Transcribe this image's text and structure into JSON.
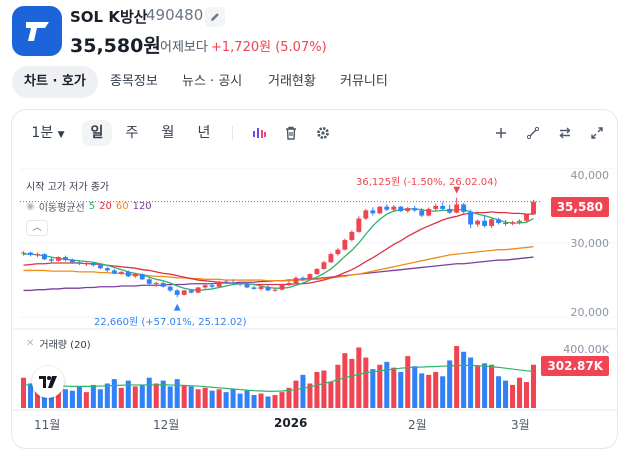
{
  "header": {
    "name": "SOL K방산",
    "code": "490480",
    "price": "35,580원",
    "vs_label": "어제보다",
    "change": "+1,720원 (5.07%)"
  },
  "tabs": [
    {
      "label": "차트 · 호가",
      "active": true
    },
    {
      "label": "종목정보",
      "active": false
    },
    {
      "label": "뉴스 · 공시",
      "active": false
    },
    {
      "label": "거래현황",
      "active": false
    },
    {
      "label": "커뮤니티",
      "active": false
    }
  ],
  "toolbar": {
    "interval": "1분",
    "periods": [
      "일",
      "주",
      "월",
      "년"
    ],
    "active_period": "일",
    "icons": [
      "indicator-icon",
      "trash-icon",
      "settings-icon",
      "crosshair-icon",
      "draw-line-icon",
      "compare-icon",
      "fullscreen-icon"
    ]
  },
  "chart_data": {
    "type": "candlestick",
    "legend_ohlc": "시작 고가 저가 종가",
    "legend_ma": {
      "label": "이동평균선",
      "periods": [
        "5",
        "20",
        "60",
        "120"
      ]
    },
    "volume_label": "거래량 (20)",
    "y_axis_ticks": [
      "40,000",
      "30,000",
      "20,000"
    ],
    "volume_axis_tick": "400.00K",
    "x_axis_ticks": [
      "11월",
      "12월",
      "2026",
      "2월",
      "3월"
    ],
    "current_price": "35,580",
    "current_volume": "302.87K",
    "annotation_high": "36,125원 (-1.50%, 26.02.04)",
    "annotation_low": "22,660원 (+57.01%, 25.12.02)",
    "ylim": [
      18800,
      41200
    ],
    "colors": {
      "up": "#f04452",
      "down": "#3182f6",
      "ma5": "#2fb36b",
      "ma20": "#e0303f",
      "ma60": "#f08c1a",
      "ma120": "#7b3fa0"
    },
    "candles": [
      [
        28600,
        28900,
        28300,
        28700
      ],
      [
        28700,
        28800,
        28200,
        28400
      ],
      [
        28400,
        28700,
        28100,
        28500
      ],
      [
        28500,
        28600,
        27700,
        27800
      ],
      [
        27800,
        28100,
        27400,
        27600
      ],
      [
        27600,
        28200,
        27500,
        28100
      ],
      [
        28100,
        28300,
        27500,
        27700
      ],
      [
        27700,
        27900,
        27200,
        27400
      ],
      [
        27400,
        27600,
        27000,
        27200
      ],
      [
        27200,
        27500,
        26900,
        27300
      ],
      [
        27300,
        27400,
        26800,
        27000
      ],
      [
        27000,
        27200,
        26500,
        26600
      ],
      [
        26600,
        26800,
        26100,
        26300
      ],
      [
        26300,
        26500,
        25800,
        25900
      ],
      [
        25900,
        26200,
        25700,
        26100
      ],
      [
        26100,
        26300,
        25400,
        25500
      ],
      [
        25500,
        25900,
        25300,
        25800
      ],
      [
        25800,
        25900,
        25000,
        25100
      ],
      [
        25100,
        25300,
        24300,
        24500
      ],
      [
        24500,
        24800,
        24100,
        24600
      ],
      [
        24600,
        24800,
        24000,
        24100
      ],
      [
        24100,
        24300,
        23400,
        23600
      ],
      [
        23600,
        23800,
        22660,
        23000
      ],
      [
        23000,
        23700,
        22900,
        23600
      ],
      [
        23600,
        23800,
        23200,
        23300
      ],
      [
        23300,
        24100,
        23200,
        24000
      ],
      [
        24000,
        24400,
        23800,
        24300
      ],
      [
        24300,
        24500,
        23900,
        24100
      ],
      [
        24100,
        24900,
        24000,
        24800
      ],
      [
        24800,
        25000,
        24500,
        24700
      ],
      [
        24700,
        25100,
        24400,
        24600
      ],
      [
        24600,
        24800,
        24200,
        24400
      ],
      [
        24400,
        24600,
        23900,
        24000
      ],
      [
        24000,
        24200,
        23700,
        23800
      ],
      [
        23800,
        24200,
        23600,
        24100
      ],
      [
        24100,
        24300,
        23500,
        23600
      ],
      [
        23600,
        23900,
        23400,
        23700
      ],
      [
        23700,
        24500,
        23600,
        24400
      ],
      [
        24400,
        24800,
        24200,
        24600
      ],
      [
        24600,
        25500,
        24500,
        25300
      ],
      [
        25300,
        25500,
        24900,
        25100
      ],
      [
        25100,
        25900,
        25000,
        25800
      ],
      [
        25800,
        26600,
        25700,
        26500
      ],
      [
        26500,
        27600,
        26400,
        27400
      ],
      [
        27400,
        28700,
        27300,
        28500
      ],
      [
        28500,
        29300,
        28300,
        29100
      ],
      [
        29100,
        30600,
        29000,
        30400
      ],
      [
        30400,
        31700,
        30200,
        31500
      ],
      [
        31500,
        33600,
        31400,
        33300
      ],
      [
        33300,
        34600,
        33100,
        34400
      ],
      [
        34400,
        34800,
        33700,
        34000
      ],
      [
        34000,
        35000,
        33900,
        34900
      ],
      [
        34900,
        35200,
        34300,
        34500
      ],
      [
        34500,
        35100,
        34200,
        34900
      ],
      [
        34900,
        35000,
        34200,
        34300
      ],
      [
        34300,
        34900,
        34100,
        34700
      ],
      [
        34700,
        35000,
        34200,
        34400
      ],
      [
        34400,
        34700,
        33500,
        33700
      ],
      [
        33700,
        34800,
        33600,
        34600
      ],
      [
        34600,
        35300,
        34300,
        35000
      ],
      [
        35000,
        35500,
        34400,
        34600
      ],
      [
        34600,
        35200,
        33900,
        34100
      ],
      [
        34100,
        36125,
        34000,
        35200
      ],
      [
        35200,
        35400,
        34000,
        34200
      ],
      [
        34200,
        34500,
        32000,
        32500
      ],
      [
        32500,
        33200,
        32200,
        33000
      ],
      [
        33000,
        33700,
        32100,
        32300
      ],
      [
        32300,
        33300,
        32000,
        33200
      ],
      [
        33200,
        33400,
        32500,
        32700
      ],
      [
        32700,
        33100,
        32300,
        32600
      ],
      [
        32600,
        33000,
        32400,
        32800
      ],
      [
        32800,
        33200,
        32500,
        33000
      ],
      [
        33000,
        33900,
        32900,
        33860
      ],
      [
        33860,
        35800,
        33800,
        35580
      ]
    ],
    "ma5": [
      28500,
      28500,
      28400,
      28300,
      28100,
      27900,
      27800,
      27700,
      27600,
      27500,
      27400,
      27200,
      27000,
      26700,
      26400,
      26100,
      25900,
      25700,
      25400,
      25100,
      24900,
      24600,
      24200,
      23900,
      23700,
      23600,
      23700,
      23800,
      24000,
      24200,
      24400,
      24500,
      24500,
      24400,
      24200,
      24000,
      23900,
      23900,
      24000,
      24300,
      24600,
      25000,
      25400,
      25900,
      26500,
      27300,
      28200,
      29000,
      30000,
      31200,
      32300,
      33200,
      33900,
      34300,
      34500,
      34600,
      34600,
      34500,
      34300,
      34300,
      34400,
      34400,
      34500,
      34500,
      34200,
      33900,
      33700,
      33400,
      33100,
      32800,
      32700,
      32700,
      32800,
      33300
    ],
    "ma20": [
      27000,
      27100,
      27200,
      27200,
      27300,
      27300,
      27300,
      27300,
      27300,
      27200,
      27200,
      27100,
      27000,
      26900,
      26800,
      26700,
      26600,
      26400,
      26300,
      26100,
      25900,
      25800,
      25600,
      25400,
      25200,
      25000,
      24900,
      24800,
      24700,
      24600,
      24600,
      24500,
      24500,
      24400,
      24400,
      24400,
      24400,
      24400,
      24400,
      24500,
      24500,
      24600,
      24800,
      25000,
      25300,
      25600,
      26000,
      26400,
      26900,
      27500,
      28000,
      28600,
      29200,
      29800,
      30300,
      30900,
      31400,
      31900,
      32300,
      32700,
      33100,
      33400,
      33600,
      33900,
      34000,
      34100,
      34100,
      34200,
      34100,
      34100,
      34000,
      34000,
      33900,
      33900
    ],
    "ma60": [
      26300,
      26300,
      26300,
      26300,
      26200,
      26200,
      26200,
      26200,
      26100,
      26100,
      26100,
      26000,
      26000,
      25900,
      25900,
      25800,
      25700,
      25700,
      25600,
      25500,
      25500,
      25400,
      25300,
      25300,
      25200,
      25200,
      25100,
      25100,
      25100,
      25000,
      25000,
      25000,
      25000,
      25000,
      25000,
      24900,
      24900,
      24900,
      24900,
      25000,
      25000,
      25100,
      25100,
      25200,
      25300,
      25400,
      25500,
      25700,
      25800,
      26000,
      26200,
      26400,
      26600,
      26800,
      27000,
      27200,
      27400,
      27600,
      27800,
      28000,
      28200,
      28400,
      28500,
      28600,
      28700,
      28800,
      28900,
      29000,
      29100,
      29100,
      29200,
      29300,
      29400,
      29500
    ],
    "ma120": [
      23600,
      23600,
      23700,
      23700,
      23800,
      23800,
      23900,
      23900,
      23900,
      24000,
      24000,
      24100,
      24100,
      24100,
      24200,
      24200,
      24200,
      24300,
      24300,
      24300,
      24300,
      24400,
      24400,
      24400,
      24500,
      24500,
      24500,
      24500,
      24600,
      24600,
      24600,
      24700,
      24700,
      24700,
      24800,
      24800,
      24900,
      24900,
      25000,
      25000,
      25100,
      25200,
      25200,
      25300,
      25400,
      25500,
      25600,
      25700,
      25800,
      25900,
      26000,
      26100,
      26200,
      26300,
      26400,
      26500,
      26600,
      26700,
      26800,
      26900,
      27000,
      27100,
      27200,
      27200,
      27300,
      27400,
      27500,
      27600,
      27700,
      27700,
      27800,
      27900,
      28000,
      28100
    ],
    "volume": [
      210,
      170,
      220,
      150,
      180,
      140,
      130,
      120,
      150,
      110,
      160,
      130,
      170,
      200,
      140,
      190,
      150,
      160,
      210,
      170,
      190,
      150,
      200,
      160,
      150,
      130,
      140,
      120,
      130,
      110,
      130,
      100,
      120,
      90,
      100,
      80,
      90,
      110,
      140,
      190,
      230,
      170,
      250,
      260,
      180,
      300,
      380,
      340,
      420,
      350,
      270,
      300,
      320,
      280,
      250,
      360,
      290,
      240,
      230,
      250,
      220,
      330,
      430,
      390,
      350,
      290,
      310,
      300,
      220,
      190,
      160,
      210,
      180,
      300
    ],
    "vol_ma": [
      160,
      160,
      158,
      156,
      155,
      154,
      152,
      150,
      150,
      150,
      150,
      152,
      154,
      156,
      158,
      159,
      160,
      160,
      160,
      160,
      161,
      160,
      158,
      156,
      154,
      152,
      148,
      144,
      140,
      136,
      132,
      128,
      124,
      120,
      118,
      116,
      116,
      118,
      122,
      128,
      136,
      146,
      158,
      170,
      182,
      196,
      210,
      222,
      234,
      244,
      252,
      258,
      264,
      270,
      276,
      280,
      282,
      284,
      286,
      288,
      290,
      292,
      294,
      296,
      295,
      294,
      290,
      286,
      282,
      276,
      270,
      264,
      258,
      255
    ],
    "vol_ylim": [
      0,
      430
    ]
  }
}
